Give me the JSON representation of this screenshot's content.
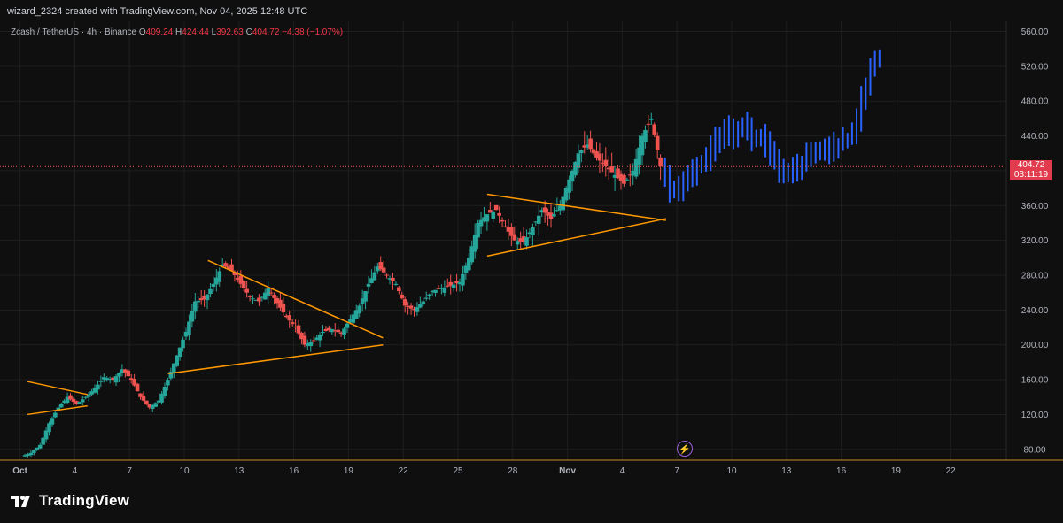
{
  "header": {
    "caption": "wizard_2324 created with TradingView.com, Nov 04, 2025 12:48 UTC",
    "symbol": "Zcash / TetherUS · 4h · Binance",
    "open_label": "O",
    "open": "409.24",
    "high_label": "H",
    "high": "424.44",
    "low_label": "L",
    "low": "392.63",
    "close_label": "C",
    "close": "404.72",
    "change": "−4.38 (−1.07%)"
  },
  "price_tag": {
    "price": "404.72",
    "countdown": "03:11:19"
  },
  "branding": {
    "name": "TradingView"
  },
  "colors": {
    "up": "#26a69a",
    "down": "#ef5350",
    "projection": "#2962ff",
    "trendline": "#ff9800",
    "price_line": "#ef5350",
    "grid": "#1e1e1e",
    "axis_text": "#b2b5be"
  },
  "icons": {
    "flash": "lightning-icon"
  },
  "chart_data": {
    "type": "candlestick",
    "title": "Zcash / TetherUS · 4h · Binance",
    "ylim": [
      60,
      580
    ],
    "y_ticks": [
      "80.00",
      "120.00",
      "160.00",
      "200.00",
      "240.00",
      "280.00",
      "320.00",
      "360.00",
      "400.00",
      "440.00",
      "480.00",
      "520.00",
      "560.00"
    ],
    "x_ticks": [
      "Oct",
      "4",
      "7",
      "10",
      "13",
      "16",
      "19",
      "22",
      "25",
      "28",
      "Nov",
      "4",
      "7",
      "10",
      "13",
      "16",
      "19",
      "22"
    ],
    "current_price": 404.72,
    "grid": true,
    "candles_close_path": [
      [
        1,
        72
      ],
      [
        1.5,
        76
      ],
      [
        2,
        85
      ],
      [
        2.5,
        110
      ],
      [
        3,
        128
      ],
      [
        3.5,
        140
      ],
      [
        4,
        132
      ],
      [
        4.5,
        140
      ],
      [
        5,
        150
      ],
      [
        5.5,
        163
      ],
      [
        6,
        160
      ],
      [
        6.5,
        172
      ],
      [
        7,
        160
      ],
      [
        7.5,
        140
      ],
      [
        8,
        128
      ],
      [
        8.5,
        136
      ],
      [
        9,
        160
      ],
      [
        9.5,
        188
      ],
      [
        10,
        215
      ],
      [
        10.5,
        250
      ],
      [
        11,
        252
      ],
      [
        11.5,
        270
      ],
      [
        12,
        292
      ],
      [
        12.5,
        285
      ],
      [
        13,
        270
      ],
      [
        13.5,
        255
      ],
      [
        14,
        250
      ],
      [
        14.5,
        265
      ],
      [
        15,
        248
      ],
      [
        15.5,
        232
      ],
      [
        16,
        220
      ],
      [
        16.5,
        200
      ],
      [
        17,
        205
      ],
      [
        17.5,
        215
      ],
      [
        18,
        218
      ],
      [
        18.5,
        213
      ],
      [
        19,
        230
      ],
      [
        19.5,
        245
      ],
      [
        20,
        270
      ],
      [
        20.5,
        290
      ],
      [
        21,
        280
      ],
      [
        21.5,
        270
      ],
      [
        22,
        245
      ],
      [
        22.5,
        240
      ],
      [
        23,
        250
      ],
      [
        23.5,
        262
      ],
      [
        24,
        265
      ],
      [
        24.5,
        268
      ],
      [
        25,
        272
      ],
      [
        25.5,
        300
      ],
      [
        26,
        340
      ],
      [
        26.5,
        350
      ],
      [
        27,
        355
      ],
      [
        27.5,
        335
      ],
      [
        28,
        320
      ],
      [
        28.5,
        318
      ],
      [
        29,
        335
      ],
      [
        29.5,
        355
      ],
      [
        30,
        345
      ],
      [
        30.5,
        360
      ],
      [
        31,
        390
      ],
      [
        31.5,
        420
      ],
      [
        32,
        430
      ],
      [
        32.5,
        415
      ],
      [
        33,
        405
      ],
      [
        33.5,
        395
      ],
      [
        34,
        385
      ],
      [
        34.5,
        400
      ],
      [
        35,
        440
      ],
      [
        35.5,
        460
      ],
      [
        36,
        405
      ]
    ],
    "projection_close_path": [
      [
        36,
        405
      ],
      [
        36.5,
        380
      ],
      [
        37,
        372
      ],
      [
        37.5,
        395
      ],
      [
        38,
        405
      ],
      [
        38.5,
        415
      ],
      [
        39,
        435
      ],
      [
        39.5,
        450
      ],
      [
        40,
        442
      ],
      [
        40.5,
        455
      ],
      [
        41,
        435
      ],
      [
        41.5,
        440
      ],
      [
        42,
        420
      ],
      [
        42.5,
        398
      ],
      [
        43,
        395
      ],
      [
        43.5,
        405
      ],
      [
        44,
        415
      ],
      [
        44.5,
        420
      ],
      [
        45,
        425
      ],
      [
        45.5,
        430
      ],
      [
        46,
        432
      ],
      [
        46.5,
        440
      ],
      [
        47,
        480
      ],
      [
        47.5,
        520
      ],
      [
        48,
        530
      ]
    ],
    "trendlines": [
      {
        "x1": 1.3,
        "y1": 158,
        "x2": 4.6,
        "y2": 143
      },
      {
        "x1": 1.3,
        "y1": 120,
        "x2": 4.6,
        "y2": 130
      },
      {
        "x1": 11.2,
        "y1": 297,
        "x2": 20.8,
        "y2": 208
      },
      {
        "x1": 9.0,
        "y1": 167,
        "x2": 20.8,
        "y2": 200
      },
      {
        "x1": 26.5,
        "y1": 373,
        "x2": 36.3,
        "y2": 343
      },
      {
        "x1": 26.5,
        "y1": 302,
        "x2": 36.3,
        "y2": 345
      }
    ]
  }
}
